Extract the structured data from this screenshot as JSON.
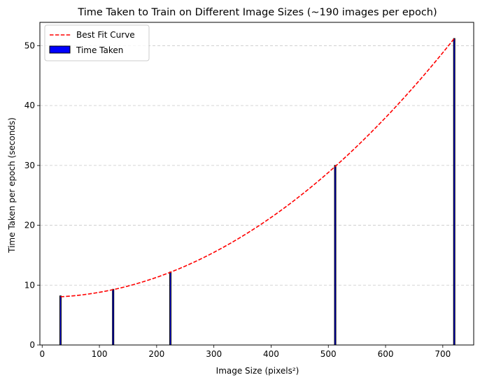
{
  "chart_data": {
    "type": "bar",
    "title": "Time Taken to Train on Different Image Sizes (~190 images per epoch)",
    "xlabel": "Image Size (pixels²)",
    "ylabel": "Time Taken per epoch (seconds)",
    "xlim": [
      -4,
      754
    ],
    "ylim": [
      0,
      53.9
    ],
    "x_ticks": [
      0,
      100,
      200,
      300,
      400,
      500,
      600,
      700
    ],
    "y_ticks": [
      0,
      10,
      20,
      30,
      40,
      50
    ],
    "grid": "y-dashed",
    "legend_position": "top-left",
    "bars": {
      "name": "Time Taken",
      "color": "#0000ff",
      "edge_color": "#000000",
      "x": [
        32,
        124,
        224,
        512,
        720
      ],
      "values": [
        8.2,
        9.3,
        12.2,
        30.0,
        51.2
      ]
    },
    "fit_curve": {
      "name": "Best Fit Curve",
      "color": "#ff0000",
      "style": "dashed",
      "x_range": [
        32,
        720
      ],
      "coefficients": [
        7.967,
        0.0,
        8.34e-05
      ]
    }
  }
}
